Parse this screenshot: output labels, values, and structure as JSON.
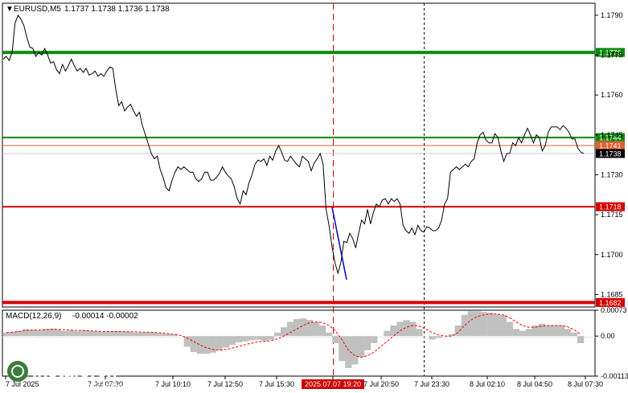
{
  "header": {
    "symbol": "EURUSD,M5",
    "ohlc": "1.1737 1.1738 1.1736 1.1738",
    "macd_label": "MACD(12,26,9)",
    "macd_values": "-0.00014 -0.00002"
  },
  "colors": {
    "price_line": "#000000",
    "support_resistance": "#d40000",
    "target_green": "#0b8a0b",
    "macd_histogram": "#c0c0c0",
    "macd_signal": "#ff0000",
    "arrow_down": "#1010c0",
    "current_price_tag": "#000000",
    "session_marker": "#cc0000"
  },
  "chart_data": {
    "type": "line",
    "symbol": "EURUSD",
    "timeframe": "M5",
    "ylim": [
      1.16803,
      1.17945
    ],
    "y_ticks": [
      "1.1790",
      "1.1775",
      "1.1760",
      "1.1745",
      "1.1730",
      "1.1715",
      "1.1700",
      "1.1685"
    ],
    "y_tick_values": [
      1.179,
      1.1775,
      1.176,
      1.1745,
      1.173,
      1.1715,
      1.17,
      1.1685
    ],
    "x_ticks": [
      "7 Jul 2025",
      "7 Jul 07:30",
      "7 Jul 10:10",
      "7 Jul 12:50",
      "7 Jul 15:30",
      "2025.07.07 19:20",
      "7 Jul 20:50",
      "7 Jul 23:30",
      "8 Jul 02:10",
      "8 Jul 04:50",
      "8 Jul 07:30"
    ],
    "series": [
      {
        "values": [
          1.17735,
          1.17745,
          1.1773,
          1.1776,
          1.1787,
          1.179,
          1.17885,
          1.1786,
          1.17815,
          1.1778,
          1.17775,
          1.17745,
          1.1776,
          1.1775,
          1.17775,
          1.1775,
          1.1772,
          1.17725,
          1.17695,
          1.1768,
          1.17715,
          1.1769,
          1.1771,
          1.17735,
          1.1771,
          1.1769,
          1.177,
          1.17685,
          1.177,
          1.17675,
          1.1768,
          1.1769,
          1.1767,
          1.1768,
          1.1767,
          1.1769,
          1.17705,
          1.177,
          1.1762,
          1.1756,
          1.17575,
          1.1754,
          1.17555,
          1.17565,
          1.1754,
          1.1752,
          1.17535,
          1.17485,
          1.1745,
          1.17415,
          1.1738,
          1.1736,
          1.1737,
          1.1732,
          1.1729,
          1.1725,
          1.1724,
          1.1728,
          1.1731,
          1.1733,
          1.1732,
          1.1733,
          1.1732,
          1.1731,
          1.1731,
          1.17285,
          1.17275,
          1.17285,
          1.1731,
          1.1731,
          1.1728,
          1.1728,
          1.1729,
          1.17305,
          1.1733,
          1.1731,
          1.17295,
          1.17285,
          1.17255,
          1.1721,
          1.1719,
          1.1724,
          1.17225,
          1.1727,
          1.173,
          1.1734,
          1.17355,
          1.1735,
          1.1736,
          1.17335,
          1.1737,
          1.17355,
          1.1739,
          1.1741,
          1.17385,
          1.17355,
          1.1735,
          1.1737,
          1.17355,
          1.1734,
          1.1733,
          1.1737,
          1.1736,
          1.1735,
          1.17315,
          1.17345,
          1.1736,
          1.1738,
          1.1734,
          1.1717,
          1.1711,
          1.1703,
          1.1697,
          1.1693,
          1.1697,
          1.1705,
          1.17045,
          1.1708,
          1.1706,
          1.17025,
          1.1708,
          1.1713,
          1.17115,
          1.1717,
          1.17115,
          1.1716,
          1.1719,
          1.1718,
          1.17205,
          1.1721,
          1.1719,
          1.1721,
          1.172,
          1.1721,
          1.1719,
          1.1711,
          1.1709,
          1.1708,
          1.171,
          1.17075,
          1.1711,
          1.1709,
          1.17085,
          1.17105,
          1.171,
          1.1709,
          1.1709,
          1.171,
          1.1713,
          1.1719,
          1.1721,
          1.1731,
          1.1732,
          1.1733,
          1.1732,
          1.1733,
          1.1734,
          1.1733,
          1.1735,
          1.1736,
          1.1742,
          1.1745,
          1.1746,
          1.1743,
          1.1742,
          1.1742,
          1.17455,
          1.1744,
          1.1739,
          1.1735,
          1.1738,
          1.1738,
          1.1742,
          1.1741,
          1.1744,
          1.1742,
          1.1745,
          1.17475,
          1.1745,
          1.1742,
          1.1745,
          1.1744,
          1.1739,
          1.1741,
          1.1746,
          1.1748,
          1.1748,
          1.1748,
          1.1747,
          1.17485,
          1.17475,
          1.1746,
          1.17435,
          1.17435,
          1.174,
          1.17385,
          1.1738
        ],
        "color": "#000000"
      }
    ],
    "levels": [
      {
        "price": 1.1776,
        "label": "1.1776",
        "color": "#0b8a0b"
      },
      {
        "price": 1.1744,
        "label": "1.1744",
        "color": "#0b8a0b"
      },
      {
        "price": 1.1741,
        "label": "1.1741",
        "color": "#e06030"
      },
      {
        "price": 1.1738,
        "label": "1.1738",
        "color": "#000000"
      },
      {
        "price": 1.1718,
        "label": "1.1718",
        "color": "#d40000"
      },
      {
        "price": 1.1682,
        "label": "1.1682",
        "color": "#d40000"
      }
    ],
    "macd": {
      "ylim": [
        -0.00113,
        0.00073
      ],
      "y_ticks": [
        "0.00073",
        "0.00",
        "-0.00113"
      ],
      "y_tick_values": [
        0.00073,
        0.0,
        -0.00113
      ],
      "histogram": [
        0.0001,
        0.00012,
        0.00015,
        0.0002,
        0.00018,
        0.00016,
        0.0002,
        0.00021,
        0.00018,
        0.00015,
        0.00016,
        0.00014,
        0.00017,
        0.00015,
        0.00013,
        0.00012,
        0.00013,
        0.00014,
        0.00013,
        0.00012,
        0.0001,
        0.0001,
        0.00011,
        0.0001,
        8e-05,
        6e-05,
        4e-05,
        0.0,
        -0.0003,
        -0.00045,
        -0.0005,
        -0.0005,
        -0.00047,
        -0.0004,
        -0.00032,
        -0.00025,
        -0.00018,
        -0.00015,
        -0.00012,
        -0.0001,
        -0.00013,
        -0.0001,
        0.0001,
        0.00025,
        0.0004,
        0.00048,
        0.0005,
        0.00046,
        0.0004,
        0.0003,
        0.0001,
        -0.0002,
        -0.0007,
        -0.0009,
        -0.0008,
        -0.0006,
        -0.0004,
        -0.0002,
        0.0,
        0.00015,
        0.0003,
        0.0004,
        0.00045,
        0.0004,
        0.0002,
        0.0,
        -0.0001,
        -5e-05,
        0.0,
        5e-05,
        0.0003,
        0.0006,
        0.0007,
        0.0007,
        0.00068,
        0.00066,
        0.00062,
        0.0006,
        0.0004,
        0.0002,
        0.00015,
        0.0002,
        0.0003,
        0.00035,
        0.0003,
        0.0003,
        0.0003,
        0.0002,
        0.0001,
        -0.0002
      ],
      "signal": [
        0.0001,
        0.00011,
        0.00013,
        0.00016,
        0.00017,
        0.00017,
        0.00018,
        0.00019,
        0.00019,
        0.00018,
        0.00017,
        0.00016,
        0.00016,
        0.00015,
        0.00014,
        0.00013,
        0.00013,
        0.00013,
        0.00013,
        0.00012,
        0.00012,
        0.00011,
        0.00011,
        0.0001,
        9e-05,
        7e-05,
        5e-05,
        2e-05,
        -5e-05,
        -0.00015,
        -0.00025,
        -0.00033,
        -0.00038,
        -0.0004,
        -0.00038,
        -0.00034,
        -0.00029,
        -0.00024,
        -0.0002,
        -0.00016,
        -0.00015,
        -0.00013,
        -8e-05,
        0.0,
        0.0001,
        0.0002,
        0.0003,
        0.00038,
        0.0004,
        0.00038,
        0.0003,
        0.00015,
        -0.0001,
        -0.0004,
        -0.00055,
        -0.0006,
        -0.00055,
        -0.00045,
        -0.0003,
        -0.00015,
        0.0,
        0.00015,
        0.00025,
        0.0003,
        0.00028,
        0.0002,
        0.0001,
        3e-05,
        0.0,
        0.0,
        0.0001,
        0.0003,
        0.00045,
        0.00055,
        0.0006,
        0.00062,
        0.00062,
        0.0006,
        0.00052,
        0.0004,
        0.0003,
        0.00025,
        0.00025,
        0.00028,
        0.0003,
        0.0003,
        0.0003,
        0.00026,
        0.00018,
        5e-05
      ]
    }
  },
  "watermark": {
    "brand": "instaforex",
    "tagline": "Instant Forex Trading"
  }
}
